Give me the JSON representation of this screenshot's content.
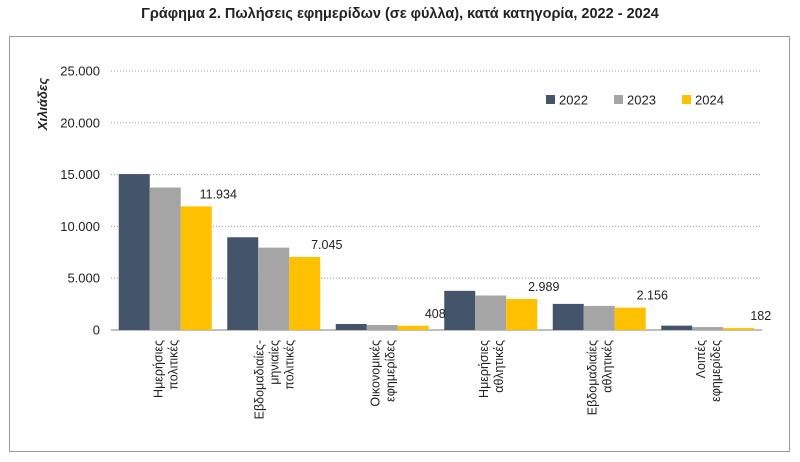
{
  "chart_data": {
    "type": "bar",
    "title": "Γράφημα 2. Πωλήσεις εφημερίδων (σε φύλλα), κατά κατηγορία, 2022 - 2024",
    "xlabel": "",
    "ylabel": "Χιλιάδες",
    "ylim": [
      0,
      25000
    ],
    "yticks": [
      0,
      5000,
      10000,
      15000,
      20000,
      25000
    ],
    "ytick_labels": [
      "0",
      "5.000",
      "10.000",
      "15.000",
      "20.000",
      "25.000"
    ],
    "grid": true,
    "legend_position": "top-right",
    "categories": [
      [
        "Ημερήσιες",
        "πολιτικές"
      ],
      [
        "Εβδομαδιαίες-",
        "μηνιαίες",
        "πολιτικές"
      ],
      [
        "Οικονομικές",
        "εφημερίδες"
      ],
      [
        "Ημερήσιες",
        "αθλητικές"
      ],
      [
        "Εβδομαδιαίες",
        "αθλητικές"
      ],
      [
        "Λοιπές",
        "εφημερίδες"
      ]
    ],
    "series": [
      {
        "name": "2022",
        "color": "#44546a",
        "values": [
          15050,
          8950,
          580,
          3780,
          2520,
          420
        ]
      },
      {
        "name": "2023",
        "color": "#a5a5a5",
        "values": [
          13750,
          7950,
          480,
          3330,
          2330,
          280
        ]
      },
      {
        "name": "2024",
        "color": "#ffc000",
        "values": [
          11934,
          7045,
          408,
          2989,
          2156,
          182
        ]
      }
    ],
    "data_labels": {
      "series": "2024",
      "labels": [
        "11.934",
        "7.045",
        "408",
        "2.989",
        "2.156",
        "182"
      ]
    }
  }
}
